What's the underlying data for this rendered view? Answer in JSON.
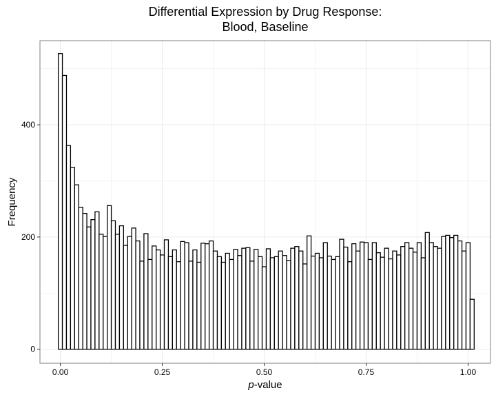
{
  "chart_data": {
    "type": "bar",
    "title_line1": "Differential Expression by Drug Response:",
    "title_line2": "Blood, Baseline",
    "xlabel_italic": "p",
    "xlabel_rest": "-value",
    "ylabel": "Frequency",
    "xlim": [
      -0.05,
      1.055
    ],
    "ylim": [
      -25,
      550
    ],
    "x_ticks": [
      0,
      0.25,
      0.5,
      0.75,
      1.0
    ],
    "x_tick_labels": [
      "0.00",
      "0.25",
      "0.50",
      "0.75",
      "1.00"
    ],
    "y_ticks": [
      0,
      200,
      400
    ],
    "y_tick_labels": [
      "0",
      "200",
      "400"
    ],
    "bin_start": -0.005,
    "bin_width": 0.01,
    "grid": true,
    "colors": {
      "bar_fill": "#ffffff",
      "bar_stroke": "#000000",
      "grid": "#ebebeb",
      "panel_border": "#7f7f7f"
    },
    "values": [
      527,
      488,
      363,
      324,
      293,
      253,
      242,
      218,
      231,
      245,
      205,
      201,
      256,
      229,
      205,
      220,
      185,
      201,
      216,
      193,
      157,
      206,
      160,
      184,
      177,
      168,
      195,
      165,
      177,
      156,
      192,
      190,
      157,
      177,
      155,
      189,
      188,
      193,
      175,
      165,
      155,
      171,
      160,
      178,
      167,
      180,
      181,
      157,
      178,
      165,
      147,
      179,
      163,
      165,
      175,
      167,
      158,
      180,
      183,
      175,
      152,
      202,
      166,
      171,
      163,
      190,
      166,
      160,
      165,
      196,
      182,
      156,
      188,
      175,
      191,
      190,
      160,
      190,
      172,
      164,
      180,
      161,
      175,
      168,
      183,
      190,
      180,
      173,
      190,
      163,
      208,
      190,
      183,
      180,
      201,
      203,
      199,
      203,
      193,
      175,
      190,
      89
    ]
  }
}
